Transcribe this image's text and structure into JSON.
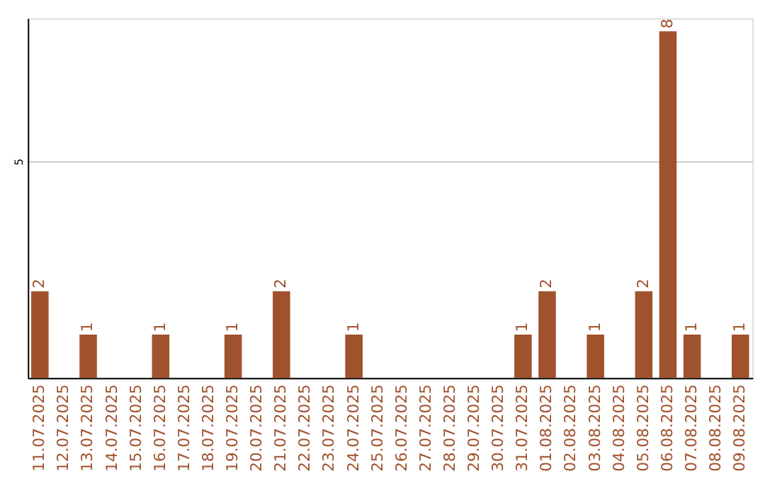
{
  "chart_data": {
    "type": "bar",
    "categories": [
      "11.07.2025",
      "12.07.2025",
      "13.07.2025",
      "14.07.2025",
      "15.07.2025",
      "16.07.2025",
      "17.07.2025",
      "18.07.2025",
      "19.07.2025",
      "20.07.2025",
      "21.07.2025",
      "22.07.2025",
      "23.07.2025",
      "24.07.2025",
      "25.07.2025",
      "26.07.2025",
      "27.07.2025",
      "28.07.2025",
      "29.07.2025",
      "30.07.2025",
      "31.07.2025",
      "01.08.2025",
      "02.08.2025",
      "03.08.2025",
      "04.08.2025",
      "05.08.2025",
      "06.08.2025",
      "07.08.2025",
      "08.08.2025",
      "09.08.2025"
    ],
    "values": [
      2,
      0,
      1,
      0,
      0,
      1,
      0,
      0,
      1,
      0,
      2,
      0,
      0,
      1,
      0,
      0,
      0,
      0,
      0,
      0,
      1,
      2,
      0,
      1,
      0,
      2,
      8,
      1,
      0,
      1
    ],
    "value_labels": [
      "2",
      null,
      "1",
      null,
      null,
      "1",
      null,
      null,
      "1",
      null,
      "2",
      null,
      null,
      "1",
      null,
      null,
      null,
      null,
      null,
      null,
      "1",
      "2",
      null,
      "1",
      null,
      "2",
      "8",
      "1",
      null,
      "1"
    ],
    "color": "#a0522d",
    "ylim": [
      0,
      8.3
    ],
    "yticks": [
      5
    ],
    "grid": "y"
  }
}
